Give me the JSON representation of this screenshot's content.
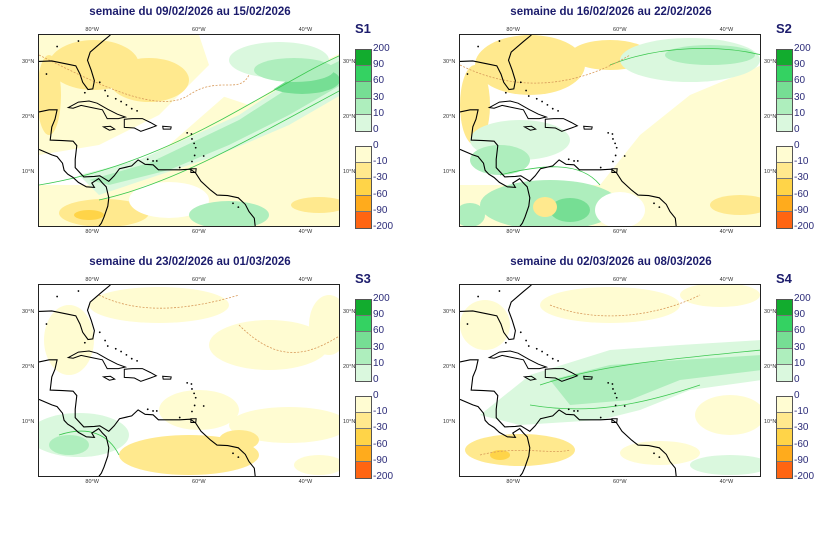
{
  "panels": [
    {
      "label": "S1",
      "title": "semaine du 09/02/2026 au 15/02/2026"
    },
    {
      "label": "S2",
      "title": "semaine du 16/02/2026 au 22/02/2026"
    },
    {
      "label": "S3",
      "title": "semaine du 23/02/2026 au 01/03/2026"
    },
    {
      "label": "S4",
      "title": "semaine du 02/03/2026 au 08/03/2026"
    }
  ],
  "axes": {
    "lon_labels": [
      "80°W",
      "60°W",
      "40°W"
    ],
    "lat_labels": [
      "30°N",
      "20°N",
      "10°N"
    ]
  },
  "colorbar": {
    "positive_ticks": [
      "200",
      "90",
      "60",
      "30",
      "10",
      "0"
    ],
    "positive_colors": [
      "#12ac2e",
      "#34d262",
      "#76de94",
      "#aeeebd",
      "#daf8de"
    ],
    "negative_ticks": [
      "0",
      "-10",
      "-30",
      "-60",
      "-90",
      "-200"
    ],
    "negative_colors": [
      "#fffcd2",
      "#ffe98e",
      "#ffd448",
      "#ffab1c",
      "#ff6512"
    ]
  },
  "colors": {
    "title": "#1c1c6c",
    "contour_positive": "#3cc850",
    "contour_negative": "#d89a5a"
  }
}
